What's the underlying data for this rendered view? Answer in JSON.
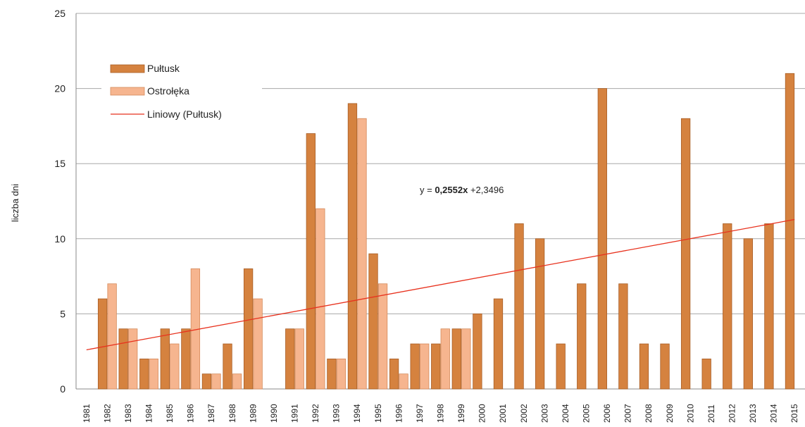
{
  "chart_data": {
    "type": "bar",
    "ylabel": "liczba dni",
    "ylim": [
      0,
      25
    ],
    "yticks": [
      "0",
      "5",
      "10",
      "15",
      "20",
      "25"
    ],
    "grid": true,
    "legend_position": "top-left",
    "categories": [
      "1981",
      "1982",
      "1983",
      "1984",
      "1985",
      "1986",
      "1987",
      "1988",
      "1989",
      "1990",
      "1991",
      "1992",
      "1993",
      "1994",
      "1995",
      "1996",
      "1997",
      "1998",
      "1999",
      "2000",
      "2001",
      "2002",
      "2003",
      "2004",
      "2005",
      "2006",
      "2007",
      "2008",
      "2009",
      "2010",
      "2011",
      "2012",
      "2013",
      "2014",
      "2015"
    ],
    "series": [
      {
        "name": "Pułtusk",
        "color": "#d5823f",
        "values": [
          null,
          6,
          4,
          2,
          4,
          4,
          1,
          3,
          8,
          null,
          4,
          17,
          2,
          19,
          9,
          2,
          3,
          3,
          4,
          5,
          6,
          11,
          10,
          3,
          7,
          20,
          7,
          3,
          3,
          18,
          2,
          11,
          10,
          11,
          21
        ]
      },
      {
        "name": "Ostrołęka",
        "color": "#f6b58f",
        "values": [
          null,
          7,
          4,
          2,
          3,
          8,
          1,
          1,
          6,
          null,
          4,
          12,
          2,
          18,
          7,
          1,
          3,
          4,
          4,
          null,
          null,
          null,
          null,
          null,
          null,
          null,
          null,
          null,
          null,
          null,
          null,
          null,
          null,
          null,
          null
        ]
      }
    ],
    "trendline": {
      "name": "Liniowy (Pułtusk)",
      "color": "#e8321e",
      "slope": 0.2552,
      "intercept": 2.3496,
      "equation_prefix": "y = ",
      "equation_slope": "0,2552x",
      "equation_rest": " +2,3496"
    }
  }
}
